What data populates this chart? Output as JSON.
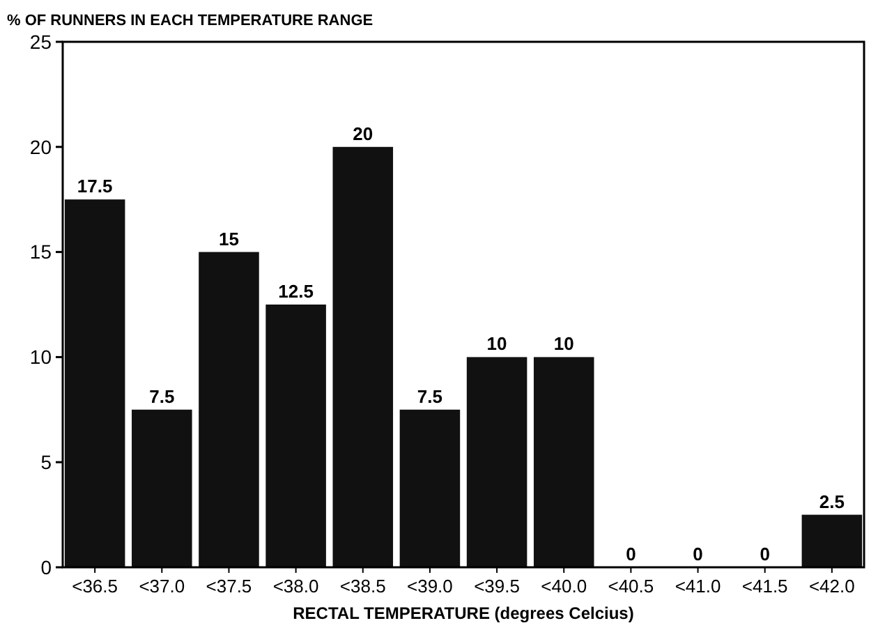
{
  "chart_data": {
    "type": "bar",
    "title": "% OF RUNNERS IN EACH TEMPERATURE RANGE",
    "xlabel": "RECTAL TEMPERATURE (degrees Celcius)",
    "categories": [
      "<36.5",
      "<37.0",
      "<37.5",
      "<38.0",
      "<38.5",
      "<39.0",
      "<39.5",
      "<40.0",
      "<40.5",
      "<41.0",
      "<41.5",
      "<42.0"
    ],
    "values": [
      17.5,
      7.5,
      15,
      12.5,
      20,
      7.5,
      10,
      10,
      0,
      0,
      0,
      2.5
    ],
    "color": "#111111",
    "ylim": [
      0,
      25
    ],
    "yticks": [
      0,
      5,
      10,
      15,
      20,
      25
    ],
    "grid": false,
    "data_labels": true
  }
}
